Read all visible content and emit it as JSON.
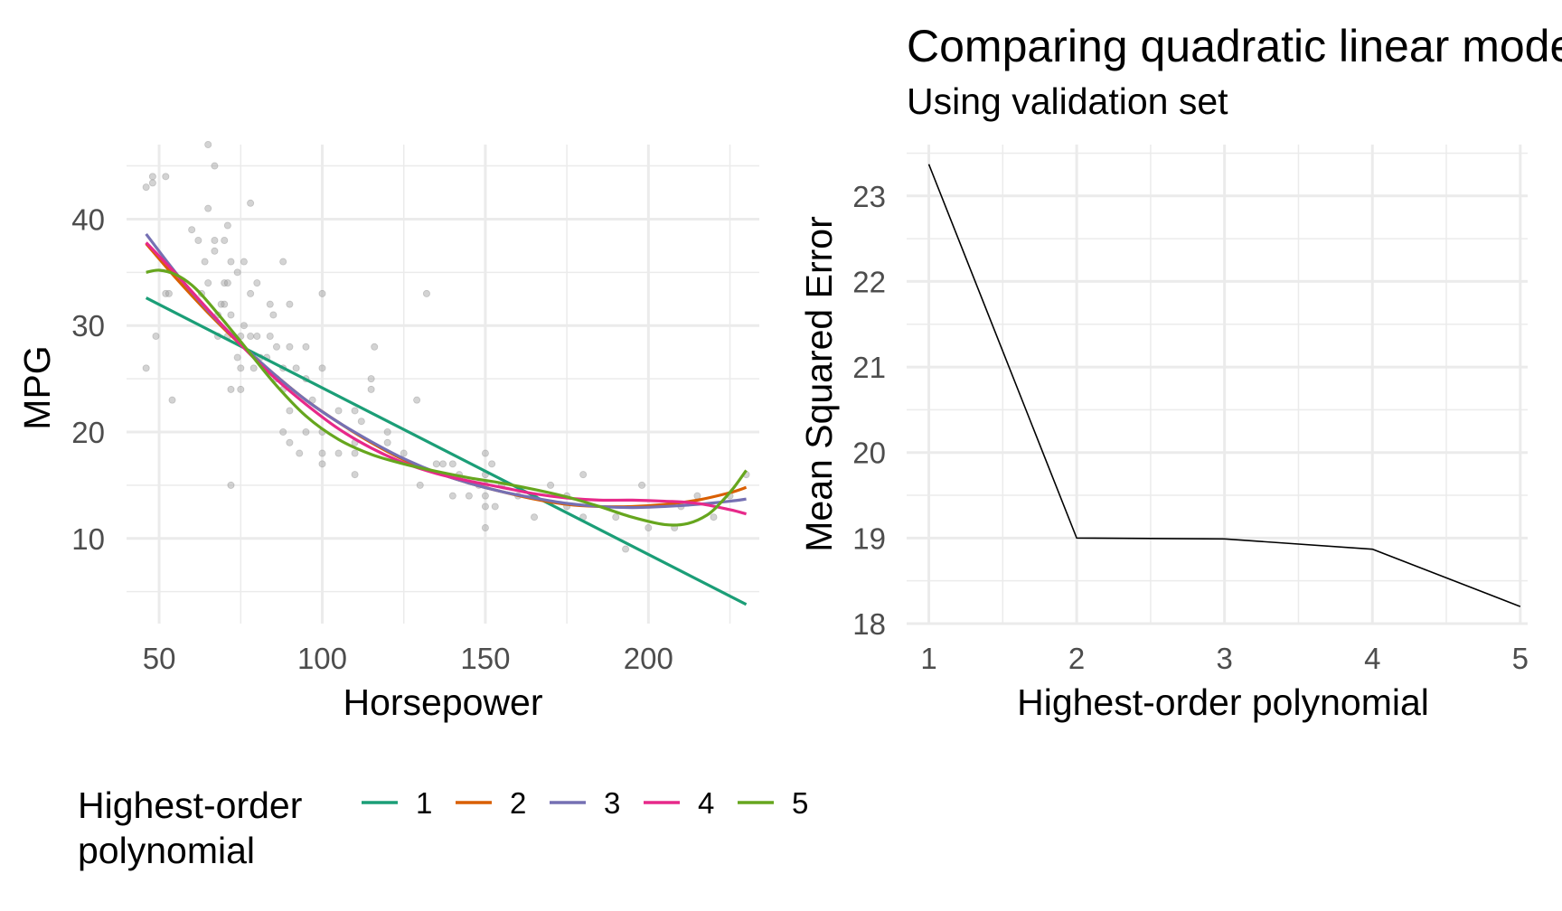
{
  "chart_data": [
    {
      "type": "scatter",
      "title": "",
      "xlabel": "Horsepower",
      "ylabel": "MPG",
      "xlim": [
        40,
        234
      ],
      "ylim": [
        2,
        47
      ],
      "x_ticks": [
        50,
        100,
        150,
        200
      ],
      "y_ticks": [
        10,
        20,
        30,
        40
      ],
      "grid": true,
      "legend": {
        "position": "bottom",
        "title_lines": [
          "Highest-order",
          "polynomial"
        ],
        "entries": [
          "1",
          "2",
          "3",
          "4",
          "5"
        ]
      },
      "point_color": "#9e9e9e",
      "points": [
        [
          46,
          26
        ],
        [
          46,
          43
        ],
        [
          48,
          44
        ],
        [
          48,
          43.4
        ],
        [
          49,
          29
        ],
        [
          52,
          33
        ],
        [
          52,
          44
        ],
        [
          53,
          33
        ],
        [
          54,
          23
        ],
        [
          60,
          39
        ],
        [
          62,
          38
        ],
        [
          63,
          33
        ],
        [
          64,
          36
        ],
        [
          65,
          34
        ],
        [
          65,
          41
        ],
        [
          65,
          47
        ],
        [
          67,
          37
        ],
        [
          67,
          45
        ],
        [
          67,
          38
        ],
        [
          68,
          31
        ],
        [
          68,
          29
        ],
        [
          69,
          32
        ],
        [
          70,
          34
        ],
        [
          70,
          38
        ],
        [
          70,
          32
        ],
        [
          71,
          34
        ],
        [
          71,
          29
        ],
        [
          71,
          39.4
        ],
        [
          72,
          15
        ],
        [
          72,
          24
        ],
        [
          72,
          31
        ],
        [
          72,
          36
        ],
        [
          74,
          35
        ],
        [
          74,
          27
        ],
        [
          75,
          29
        ],
        [
          75,
          26
        ],
        [
          75,
          24
        ],
        [
          76,
          30
        ],
        [
          76,
          36
        ],
        [
          78,
          29
        ],
        [
          78,
          33
        ],
        [
          78,
          41.5
        ],
        [
          79,
          26
        ],
        [
          80,
          29
        ],
        [
          80,
          34
        ],
        [
          81,
          27
        ],
        [
          83,
          27
        ],
        [
          84,
          32
        ],
        [
          84,
          29
        ],
        [
          85,
          31
        ],
        [
          86,
          25
        ],
        [
          86,
          28
        ],
        [
          88,
          24
        ],
        [
          88,
          26
        ],
        [
          88,
          36
        ],
        [
          88,
          20
        ],
        [
          90,
          28
        ],
        [
          90,
          22
        ],
        [
          90,
          32
        ],
        [
          90,
          19
        ],
        [
          92,
          26
        ],
        [
          93,
          18
        ],
        [
          95,
          28
        ],
        [
          95,
          25
        ],
        [
          95,
          20
        ],
        [
          97,
          23
        ],
        [
          100,
          18
        ],
        [
          100,
          17
        ],
        [
          100,
          20
        ],
        [
          100,
          26
        ],
        [
          100,
          33
        ],
        [
          105,
          18
        ],
        [
          105,
          22
        ],
        [
          110,
          19
        ],
        [
          110,
          16
        ],
        [
          110,
          18
        ],
        [
          110,
          22
        ],
        [
          112,
          21
        ],
        [
          115,
          24
        ],
        [
          115,
          25
        ],
        [
          116,
          28
        ],
        [
          120,
          20
        ],
        [
          120,
          19
        ],
        [
          125,
          18
        ],
        [
          129,
          23
        ],
        [
          130,
          15
        ],
        [
          132,
          33
        ],
        [
          135,
          17
        ],
        [
          137,
          17
        ],
        [
          140,
          14
        ],
        [
          140,
          17
        ],
        [
          142,
          16
        ],
        [
          145,
          14
        ],
        [
          148,
          15
        ],
        [
          150,
          14
        ],
        [
          150,
          16
        ],
        [
          150,
          13
        ],
        [
          150,
          18
        ],
        [
          150,
          15
        ],
        [
          150,
          11
        ],
        [
          152,
          17
        ],
        [
          153,
          13
        ],
        [
          155,
          15
        ],
        [
          160,
          14
        ],
        [
          165,
          14
        ],
        [
          165,
          12
        ],
        [
          170,
          15
        ],
        [
          175,
          13
        ],
        [
          175,
          14
        ],
        [
          180,
          12
        ],
        [
          180,
          16
        ],
        [
          190,
          12
        ],
        [
          193,
          9
        ],
        [
          198,
          15
        ],
        [
          200,
          11
        ],
        [
          208,
          11
        ],
        [
          210,
          13
        ],
        [
          215,
          14
        ],
        [
          220,
          12
        ],
        [
          225,
          14
        ],
        [
          230,
          16
        ]
      ],
      "series": [
        {
          "name": "1",
          "color": "#1b9e77",
          "x": [
            46,
            230
          ],
          "y": [
            32.6,
            3.8
          ]
        },
        {
          "name": "2",
          "color": "#d95f02",
          "x": [
            46,
            55,
            65,
            75,
            85,
            95,
            105,
            115,
            125,
            135,
            145,
            155,
            165,
            175,
            185,
            195,
            205,
            215,
            225,
            230
          ],
          "y": [
            37.7,
            34.5,
            31.2,
            28.2,
            25.5,
            23.0,
            20.9,
            19.0,
            17.4,
            16.2,
            15.2,
            14.4,
            13.7,
            13.2,
            13.0,
            13.0,
            13.2,
            13.6,
            14.3,
            14.8
          ]
        },
        {
          "name": "3",
          "color": "#7570b3",
          "x": [
            46,
            55,
            65,
            75,
            85,
            95,
            105,
            115,
            125,
            135,
            145,
            155,
            165,
            175,
            185,
            195,
            205,
            215,
            225,
            230
          ],
          "y": [
            38.6,
            35.0,
            31.4,
            28.3,
            25.5,
            23.0,
            20.9,
            19.1,
            17.5,
            16.2,
            15.2,
            14.4,
            13.8,
            13.3,
            13.0,
            12.9,
            13.0,
            13.2,
            13.5,
            13.7
          ]
        },
        {
          "name": "4",
          "color": "#e7298a",
          "x": [
            46,
            55,
            65,
            75,
            85,
            95,
            105,
            115,
            125,
            135,
            145,
            155,
            165,
            175,
            185,
            195,
            205,
            215,
            225,
            230
          ],
          "y": [
            37.8,
            34.9,
            31.5,
            28.2,
            25.2,
            22.6,
            20.3,
            18.5,
            17.1,
            16.1,
            15.4,
            14.8,
            14.2,
            13.8,
            13.6,
            13.6,
            13.5,
            13.3,
            12.7,
            12.3
          ]
        },
        {
          "name": "5",
          "color": "#66a61e",
          "x": [
            46,
            50,
            55,
            60,
            65,
            75,
            85,
            95,
            105,
            115,
            125,
            135,
            145,
            155,
            165,
            175,
            185,
            195,
            205,
            212,
            218,
            222,
            226,
            230
          ],
          "y": [
            35.0,
            35.2,
            34.8,
            33.8,
            32.2,
            28.5,
            24.7,
            21.5,
            19.3,
            17.9,
            17.0,
            16.3,
            15.7,
            15.2,
            14.6,
            13.9,
            13.0,
            12.0,
            11.3,
            11.4,
            12.2,
            13.3,
            14.7,
            16.4
          ]
        }
      ]
    },
    {
      "type": "line",
      "title": "Comparing quadratic linear models",
      "subtitle": "Using validation set",
      "xlabel": "Highest-order polynomial",
      "ylabel": "Mean Squared Error",
      "x": [
        1,
        2,
        3,
        4,
        5
      ],
      "y": [
        23.37,
        19.0,
        18.99,
        18.87,
        18.2
      ],
      "xlim": [
        0.85,
        5.05
      ],
      "ylim": [
        18,
        23.6
      ],
      "x_ticks": [
        1,
        2,
        3,
        4,
        5
      ],
      "y_ticks": [
        18,
        19,
        20,
        21,
        22,
        23
      ],
      "line_color": "#000000",
      "grid": true
    }
  ]
}
